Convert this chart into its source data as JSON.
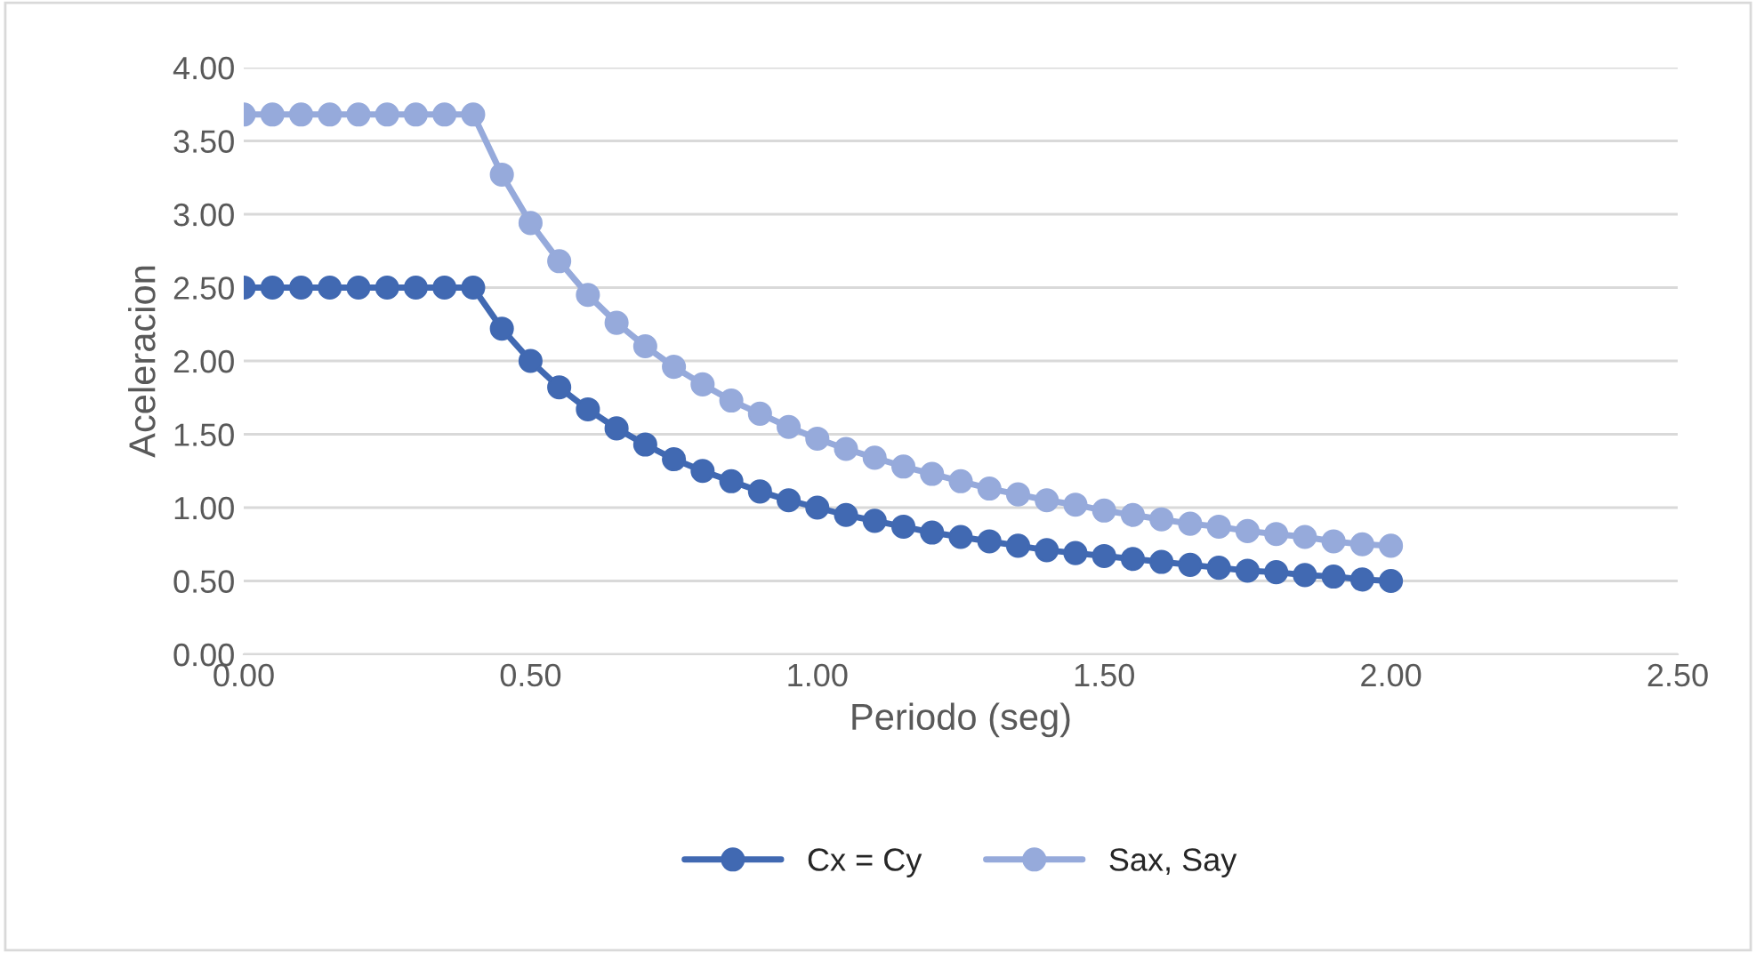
{
  "chart_data": {
    "type": "line",
    "xlabel": "Periodo (seg)",
    "ylabel": "Aceleracion",
    "x": [
      0,
      0.05,
      0.1,
      0.15,
      0.2,
      0.25,
      0.3,
      0.35,
      0.4,
      0.45,
      0.5,
      0.55,
      0.6,
      0.65,
      0.7,
      0.75,
      0.8,
      0.85,
      0.9,
      0.95,
      1.0,
      1.05,
      1.1,
      1.15,
      1.2,
      1.25,
      1.3,
      1.35,
      1.4,
      1.45,
      1.5,
      1.55,
      1.6,
      1.65,
      1.7,
      1.75,
      1.8,
      1.85,
      1.9,
      1.95,
      2.0
    ],
    "series": [
      {
        "name": "Cx = Cy",
        "color": "#4169b2",
        "values": [
          2.5,
          2.5,
          2.5,
          2.5,
          2.5,
          2.5,
          2.5,
          2.5,
          2.5,
          2.22,
          2.0,
          1.82,
          1.67,
          1.54,
          1.43,
          1.33,
          1.25,
          1.18,
          1.11,
          1.05,
          1.0,
          0.95,
          0.91,
          0.87,
          0.83,
          0.8,
          0.77,
          0.74,
          0.71,
          0.69,
          0.67,
          0.65,
          0.63,
          0.61,
          0.59,
          0.57,
          0.56,
          0.54,
          0.53,
          0.51,
          0.5
        ]
      },
      {
        "name": "Sax, Say",
        "color": "#96aadb",
        "values": [
          3.68,
          3.68,
          3.68,
          3.68,
          3.68,
          3.68,
          3.68,
          3.68,
          3.68,
          3.27,
          2.94,
          2.68,
          2.45,
          2.26,
          2.1,
          1.96,
          1.84,
          1.73,
          1.64,
          1.55,
          1.47,
          1.4,
          1.34,
          1.28,
          1.23,
          1.18,
          1.13,
          1.09,
          1.05,
          1.02,
          0.98,
          0.95,
          0.92,
          0.89,
          0.87,
          0.84,
          0.82,
          0.8,
          0.77,
          0.75,
          0.74
        ]
      }
    ],
    "xlim": [
      0,
      2.5
    ],
    "xticks": [
      {
        "value": 0,
        "label": "0.00"
      },
      {
        "value": 0.5,
        "label": "0.50"
      },
      {
        "value": 1.0,
        "label": "1.00"
      },
      {
        "value": 1.5,
        "label": "1.50"
      },
      {
        "value": 2.0,
        "label": "2.00"
      },
      {
        "value": 2.5,
        "label": "2.50"
      }
    ],
    "ylim": [
      0,
      4
    ],
    "yticks": [
      {
        "value": 0,
        "label": "0.00"
      },
      {
        "value": 0.5,
        "label": "0.50"
      },
      {
        "value": 1.0,
        "label": "1.00"
      },
      {
        "value": 1.5,
        "label": "1.50"
      },
      {
        "value": 2.0,
        "label": "2.00"
      },
      {
        "value": 2.5,
        "label": "2.50"
      },
      {
        "value": 3.0,
        "label": "3.00"
      },
      {
        "value": 3.5,
        "label": "3.50"
      },
      {
        "value": 4.0,
        "label": "4.00"
      }
    ],
    "grid": "y",
    "legend": "bottom",
    "marker": "circle",
    "line_style": "solid"
  }
}
